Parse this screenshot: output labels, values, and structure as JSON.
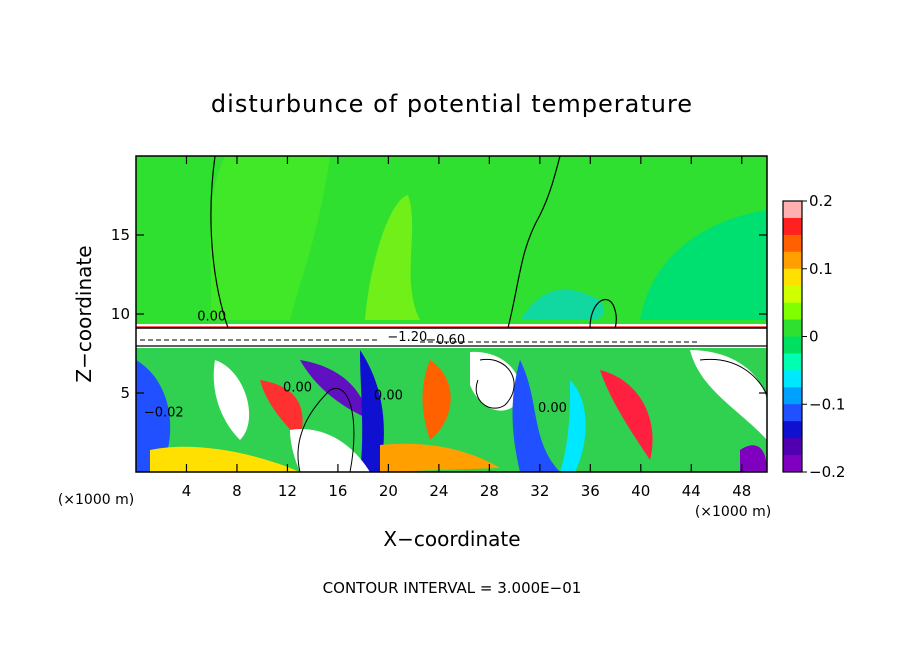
{
  "chart_data": {
    "type": "heatmap",
    "title": "disturbunce of potential temperature",
    "xlabel": "X−coordinate",
    "ylabel": "Z−coordinate",
    "x_unit_label": "(×1000 m)",
    "y_unit_label": "(×1000 m)",
    "xlim": [
      0,
      50
    ],
    "ylim": [
      0,
      20
    ],
    "x_ticks": [
      4,
      8,
      12,
      16,
      20,
      24,
      28,
      32,
      36,
      40,
      44,
      48
    ],
    "x_tick_labels": [
      "4",
      "8",
      "12",
      "16",
      "20",
      "24",
      "28",
      "32",
      "36",
      "40",
      "44",
      "48"
    ],
    "y_ticks": [
      5,
      10,
      15
    ],
    "y_tick_labels": [
      "5",
      "10",
      "15"
    ],
    "colorbar": {
      "min": -0.2,
      "max": 0.2,
      "ticks": [
        0.2,
        0.1,
        0,
        -0.1,
        -0.2
      ],
      "tick_labels": [
        "0.2",
        "0.1",
        "0",
        "−0.1",
        "−0.2"
      ],
      "colors": [
        "#ffb0b0",
        "#ff2020",
        "#ff6000",
        "#ffa000",
        "#ffe000",
        "#d0ff00",
        "#80ff00",
        "#30e030",
        "#00e060",
        "#00ffb0",
        "#00e8ff",
        "#00a0ff",
        "#2050ff",
        "#1010d0",
        "#5000b0",
        "#8000c0"
      ]
    },
    "contour_labels": [
      {
        "text": "0.00",
        "x": 6.0,
        "z": 9.6
      },
      {
        "text": "0.00",
        "x": 12.8,
        "z": 5.1
      },
      {
        "text": "0.00",
        "x": 20.0,
        "z": 4.6
      },
      {
        "text": "0.00",
        "x": 33.0,
        "z": 3.8
      },
      {
        "text": "−0.02",
        "x": 2.2,
        "z": 3.5
      },
      {
        "text": "−1.20",
        "x": 21.5,
        "z": 8.3
      },
      {
        "text": "−0.60",
        "x": 24.5,
        "z": 8.1
      }
    ],
    "annotation": "CONTOUR INTERVAL = 3.000E−01"
  }
}
